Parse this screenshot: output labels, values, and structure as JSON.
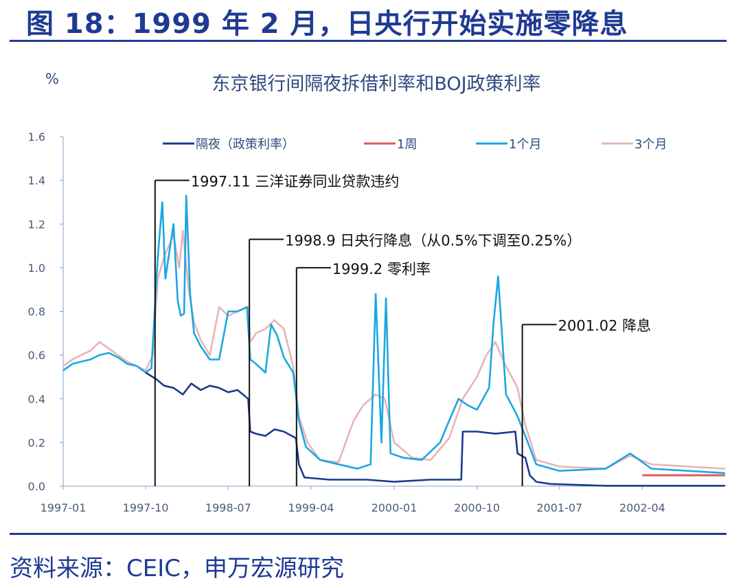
{
  "figure": {
    "title": "图 18：1999 年 2 月，日央行开始实施零降息",
    "source": "资料来源：CEIC，申万宏源研究"
  },
  "colors": {
    "brand": "#1f3a93",
    "overnight": "#1a3a8f",
    "week1": "#e05a5a",
    "month1": "#1aa7e0",
    "month3": "#e8b4b4",
    "axis": "#7f9fc8",
    "axis_text": "#4a5a7a"
  },
  "chart_data": {
    "type": "line",
    "title": "东京银行间隔夜拆借利率和BOJ政策利率",
    "ylabel": "%",
    "xlabel": "",
    "ylim": [
      0,
      1.6
    ],
    "yticks": [
      "0.0",
      "0.2",
      "0.4",
      "0.6",
      "0.8",
      "1.0",
      "1.2",
      "1.4",
      "1.6"
    ],
    "xticks": [
      "1997-01",
      "1997-10",
      "1998-07",
      "1999-04",
      "2000-01",
      "2000-10",
      "2001-07",
      "2002-04"
    ],
    "legend_position": "top",
    "grid": false,
    "series": [
      {
        "name": "隔夜（政策利率）",
        "color_key": "overnight",
        "points": [
          [
            "1997-10-01",
            0.52
          ],
          [
            "1997-11-05",
            0.49
          ],
          [
            "1997-12-01",
            0.46
          ],
          [
            "1998-01-01",
            0.45
          ],
          [
            "1998-02-01",
            0.42
          ],
          [
            "1998-03-01",
            0.47
          ],
          [
            "1998-04-01",
            0.44
          ],
          [
            "1998-05-01",
            0.46
          ],
          [
            "1998-06-01",
            0.45
          ],
          [
            "1998-07-01",
            0.43
          ],
          [
            "1998-08-01",
            0.44
          ],
          [
            "1998-09-05",
            0.4
          ],
          [
            "1998-09-12",
            0.25
          ],
          [
            "1998-10-01",
            0.24
          ],
          [
            "1998-11-01",
            0.23
          ],
          [
            "1998-12-01",
            0.26
          ],
          [
            "1999-01-01",
            0.25
          ],
          [
            "1999-02-10",
            0.22
          ],
          [
            "1999-02-20",
            0.1
          ],
          [
            "1999-03-10",
            0.04
          ],
          [
            "1999-06-01",
            0.03
          ],
          [
            "1999-10-01",
            0.03
          ],
          [
            "2000-01-01",
            0.02
          ],
          [
            "2000-05-01",
            0.03
          ],
          [
            "2000-08-10",
            0.03
          ],
          [
            "2000-08-15",
            0.25
          ],
          [
            "2000-10-01",
            0.25
          ],
          [
            "2000-12-01",
            0.24
          ],
          [
            "2001-02-05",
            0.25
          ],
          [
            "2001-02-12",
            0.15
          ],
          [
            "2001-03-10",
            0.13
          ],
          [
            "2001-03-25",
            0.05
          ],
          [
            "2001-04-15",
            0.02
          ],
          [
            "2001-06-01",
            0.01
          ],
          [
            "2001-12-01",
            0.002
          ],
          [
            "2002-06-01",
            0.002
          ],
          [
            "2002-12-31",
            0.002
          ]
        ]
      },
      {
        "name": "1周",
        "color_key": "week1",
        "points": [
          [
            "2002-04-01",
            0.05
          ],
          [
            "2002-08-01",
            0.05
          ],
          [
            "2002-12-31",
            0.05
          ]
        ]
      },
      {
        "name": "1个月",
        "color_key": "month1",
        "points": [
          [
            "1997-01-01",
            0.53
          ],
          [
            "1997-02-01",
            0.56
          ],
          [
            "1997-03-01",
            0.57
          ],
          [
            "1997-04-01",
            0.58
          ],
          [
            "1997-05-01",
            0.6
          ],
          [
            "1997-06-01",
            0.61
          ],
          [
            "1997-07-01",
            0.59
          ],
          [
            "1997-08-01",
            0.56
          ],
          [
            "1997-09-01",
            0.55
          ],
          [
            "1997-10-01",
            0.52
          ],
          [
            "1997-10-20",
            0.54
          ],
          [
            "1997-11-10",
            1.05
          ],
          [
            "1997-11-25",
            1.3
          ],
          [
            "1997-12-05",
            0.95
          ],
          [
            "1998-01-01",
            1.2
          ],
          [
            "1998-01-15",
            0.85
          ],
          [
            "1998-01-25",
            0.78
          ],
          [
            "1998-02-05",
            0.79
          ],
          [
            "1998-02-12",
            1.33
          ],
          [
            "1998-02-25",
            0.88
          ],
          [
            "1998-03-10",
            0.7
          ],
          [
            "1998-04-01",
            0.64
          ],
          [
            "1998-05-01",
            0.58
          ],
          [
            "1998-06-01",
            0.58
          ],
          [
            "1998-07-01",
            0.8
          ],
          [
            "1998-08-01",
            0.8
          ],
          [
            "1998-09-01",
            0.82
          ],
          [
            "1998-09-12",
            0.58
          ],
          [
            "1998-10-01",
            0.56
          ],
          [
            "1998-11-01",
            0.52
          ],
          [
            "1998-11-20",
            0.74
          ],
          [
            "1998-12-10",
            0.69
          ],
          [
            "1999-01-01",
            0.59
          ],
          [
            "1999-02-01",
            0.52
          ],
          [
            "1999-02-20",
            0.3
          ],
          [
            "1999-03-15",
            0.18
          ],
          [
            "1999-05-01",
            0.12
          ],
          [
            "1999-07-01",
            0.1
          ],
          [
            "1999-09-01",
            0.08
          ],
          [
            "1999-10-15",
            0.1
          ],
          [
            "1999-11-01",
            0.88
          ],
          [
            "1999-11-20",
            0.2
          ],
          [
            "1999-12-05",
            0.86
          ],
          [
            "1999-12-20",
            0.15
          ],
          [
            "2000-02-01",
            0.13
          ],
          [
            "2000-04-01",
            0.12
          ],
          [
            "2000-06-01",
            0.2
          ],
          [
            "2000-07-01",
            0.3
          ],
          [
            "2000-08-01",
            0.4
          ],
          [
            "2000-09-01",
            0.37
          ],
          [
            "2000-10-01",
            0.35
          ],
          [
            "2000-11-10",
            0.45
          ],
          [
            "2000-11-25",
            0.75
          ],
          [
            "2000-12-10",
            0.96
          ],
          [
            "2001-01-05",
            0.42
          ],
          [
            "2001-02-01",
            0.35
          ],
          [
            "2001-02-12",
            0.32
          ],
          [
            "2001-03-10",
            0.23
          ],
          [
            "2001-04-15",
            0.1
          ],
          [
            "2001-07-01",
            0.07
          ],
          [
            "2001-12-01",
            0.08
          ],
          [
            "2002-02-20",
            0.15
          ],
          [
            "2002-05-01",
            0.08
          ],
          [
            "2002-12-31",
            0.06
          ]
        ]
      },
      {
        "name": "3个月",
        "color_key": "month3",
        "points": [
          [
            "1997-01-01",
            0.55
          ],
          [
            "1997-02-01",
            0.58
          ],
          [
            "1997-03-01",
            0.6
          ],
          [
            "1997-04-01",
            0.62
          ],
          [
            "1997-05-01",
            0.66
          ],
          [
            "1997-06-01",
            0.63
          ],
          [
            "1997-07-01",
            0.6
          ],
          [
            "1997-08-01",
            0.57
          ],
          [
            "1997-09-01",
            0.55
          ],
          [
            "1997-10-01",
            0.53
          ],
          [
            "1997-10-25",
            0.6
          ],
          [
            "1997-11-10",
            0.95
          ],
          [
            "1997-12-01",
            1.05
          ],
          [
            "1998-01-01",
            1.15
          ],
          [
            "1998-01-20",
            1.0
          ],
          [
            "1998-02-01",
            1.17
          ],
          [
            "1998-02-20",
            0.9
          ],
          [
            "1998-03-10",
            0.75
          ],
          [
            "1998-04-01",
            0.67
          ],
          [
            "1998-05-01",
            0.6
          ],
          [
            "1998-06-01",
            0.82
          ],
          [
            "1998-07-01",
            0.78
          ],
          [
            "1998-08-01",
            0.8
          ],
          [
            "1998-09-05",
            0.82
          ],
          [
            "1998-09-12",
            0.66
          ],
          [
            "1998-10-01",
            0.7
          ],
          [
            "1998-11-01",
            0.72
          ],
          [
            "1998-12-01",
            0.76
          ],
          [
            "1999-01-01",
            0.72
          ],
          [
            "1999-02-01",
            0.55
          ],
          [
            "1999-02-20",
            0.32
          ],
          [
            "1999-03-20",
            0.2
          ],
          [
            "1999-05-01",
            0.12
          ],
          [
            "1999-07-01",
            0.11
          ],
          [
            "1999-08-20",
            0.3
          ],
          [
            "1999-09-20",
            0.37
          ],
          [
            "1999-11-01",
            0.42
          ],
          [
            "1999-12-01",
            0.4
          ],
          [
            "2000-01-01",
            0.2
          ],
          [
            "2000-03-01",
            0.13
          ],
          [
            "2000-05-01",
            0.12
          ],
          [
            "2000-07-01",
            0.22
          ],
          [
            "2000-08-15",
            0.4
          ],
          [
            "2000-10-01",
            0.5
          ],
          [
            "2000-11-01",
            0.6
          ],
          [
            "2000-12-01",
            0.66
          ],
          [
            "2001-01-01",
            0.56
          ],
          [
            "2001-02-01",
            0.48
          ],
          [
            "2001-02-12",
            0.45
          ],
          [
            "2001-03-10",
            0.28
          ],
          [
            "2001-04-15",
            0.12
          ],
          [
            "2001-07-01",
            0.09
          ],
          [
            "2001-12-01",
            0.08
          ],
          [
            "2002-02-20",
            0.14
          ],
          [
            "2002-05-01",
            0.1
          ],
          [
            "2002-12-31",
            0.08
          ]
        ]
      }
    ],
    "annotations": [
      {
        "date": "1997-11-01",
        "y": 1.4,
        "text": "1997.11 三洋证券同业贷款违约"
      },
      {
        "date": "1998-09-09",
        "y": 1.13,
        "text": "1998.9 日央行降息（从0.5%下调至0.25%）"
      },
      {
        "date": "1999-02-12",
        "y": 1.0,
        "text": "1999.2 零利率"
      },
      {
        "date": "2001-02-28",
        "y": 0.74,
        "text": "2001.02 降息"
      }
    ]
  }
}
